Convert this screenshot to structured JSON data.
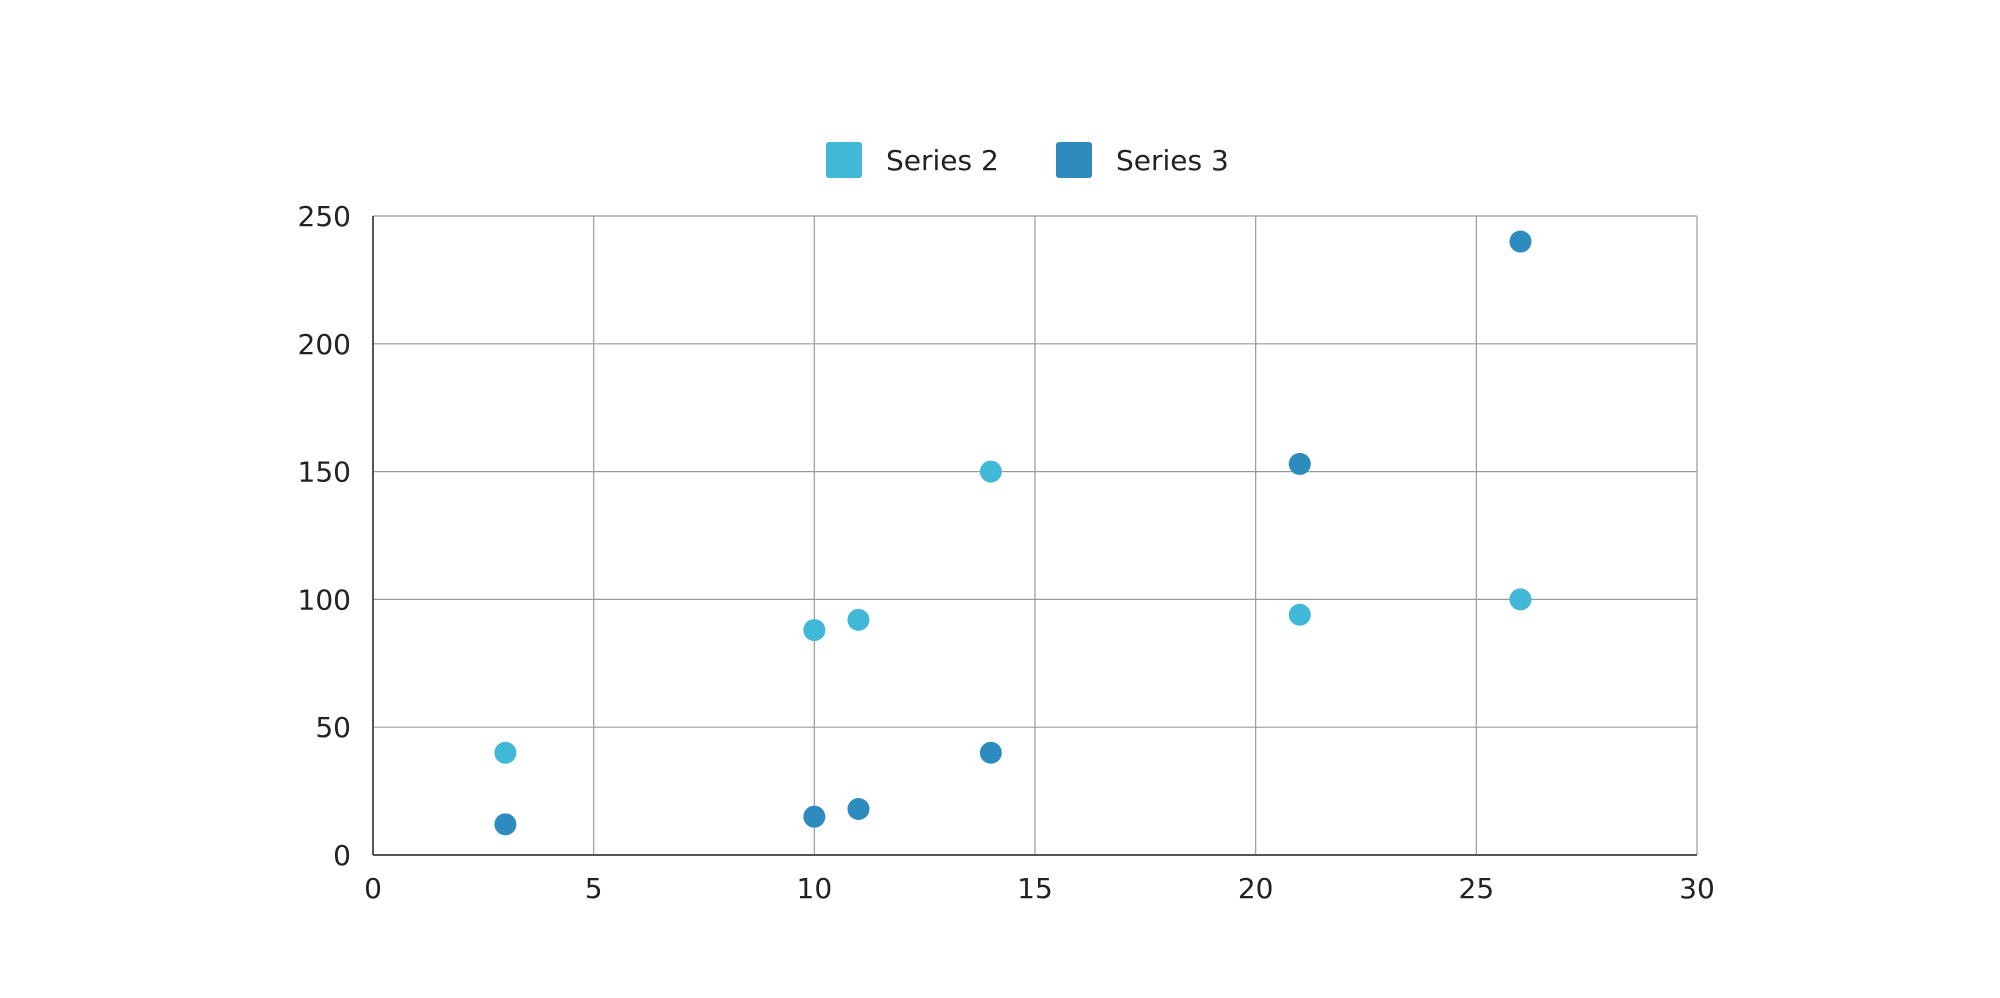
{
  "chart_data": {
    "type": "scatter",
    "title": "",
    "xlabel": "",
    "ylabel": "",
    "xlim": [
      0,
      30
    ],
    "ylim": [
      0,
      250
    ],
    "x_ticks": [
      0,
      5,
      10,
      15,
      20,
      25,
      30
    ],
    "y_ticks": [
      0,
      50,
      100,
      150,
      200,
      250
    ],
    "x_tick_labels": [
      "0",
      "5",
      "10",
      "15",
      "20",
      "25",
      "30"
    ],
    "y_tick_labels": [
      "0",
      "50",
      "100",
      "150",
      "200",
      "250"
    ],
    "grid": true,
    "legend_position": "top-center",
    "series": [
      {
        "name": "Series 2",
        "color": "#42b8d8",
        "points": [
          {
            "x": 3,
            "y": 40
          },
          {
            "x": 10,
            "y": 88
          },
          {
            "x": 11,
            "y": 92
          },
          {
            "x": 14,
            "y": 150
          },
          {
            "x": 21,
            "y": 94
          },
          {
            "x": 26,
            "y": 100
          }
        ]
      },
      {
        "name": "Series 3",
        "color": "#2e8bbd",
        "points": [
          {
            "x": 3,
            "y": 12
          },
          {
            "x": 10,
            "y": 15
          },
          {
            "x": 11,
            "y": 18
          },
          {
            "x": 14,
            "y": 40
          },
          {
            "x": 21,
            "y": 153
          },
          {
            "x": 26,
            "y": 240
          }
        ]
      }
    ]
  }
}
